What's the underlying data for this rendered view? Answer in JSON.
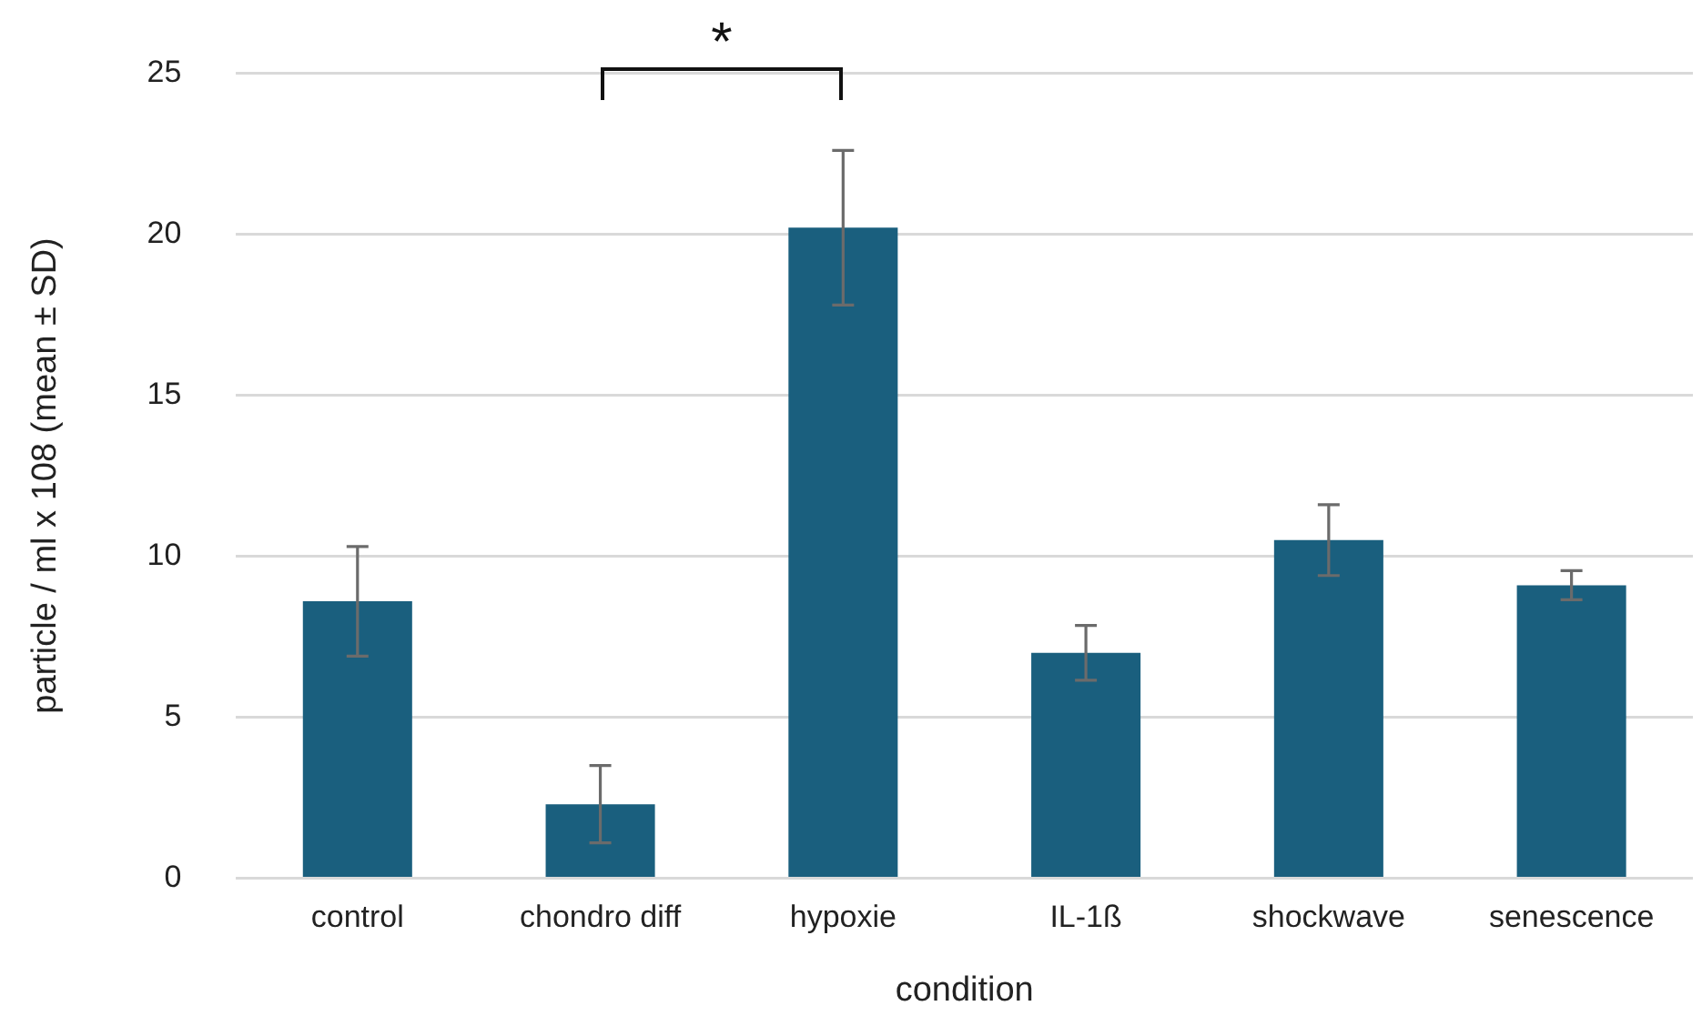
{
  "chart_data": {
    "type": "bar",
    "xlabel": "condition",
    "ylabel": "particle / ml x 108 (mean ± SD)",
    "categories": [
      "control",
      "chondro diff",
      "hypoxie",
      "IL-1ß",
      "shockwave",
      "senescence"
    ],
    "values": [
      8.6,
      2.3,
      20.2,
      7.0,
      10.5,
      9.1
    ],
    "errors": [
      1.7,
      1.2,
      2.4,
      0.85,
      1.1,
      0.45
    ],
    "color": "#1a5f7e",
    "ylim": [
      0,
      25
    ],
    "yticks": [
      0,
      5,
      10,
      15,
      20,
      25
    ],
    "grid": "y",
    "legend": false,
    "annotations": [
      "*"
    ]
  }
}
